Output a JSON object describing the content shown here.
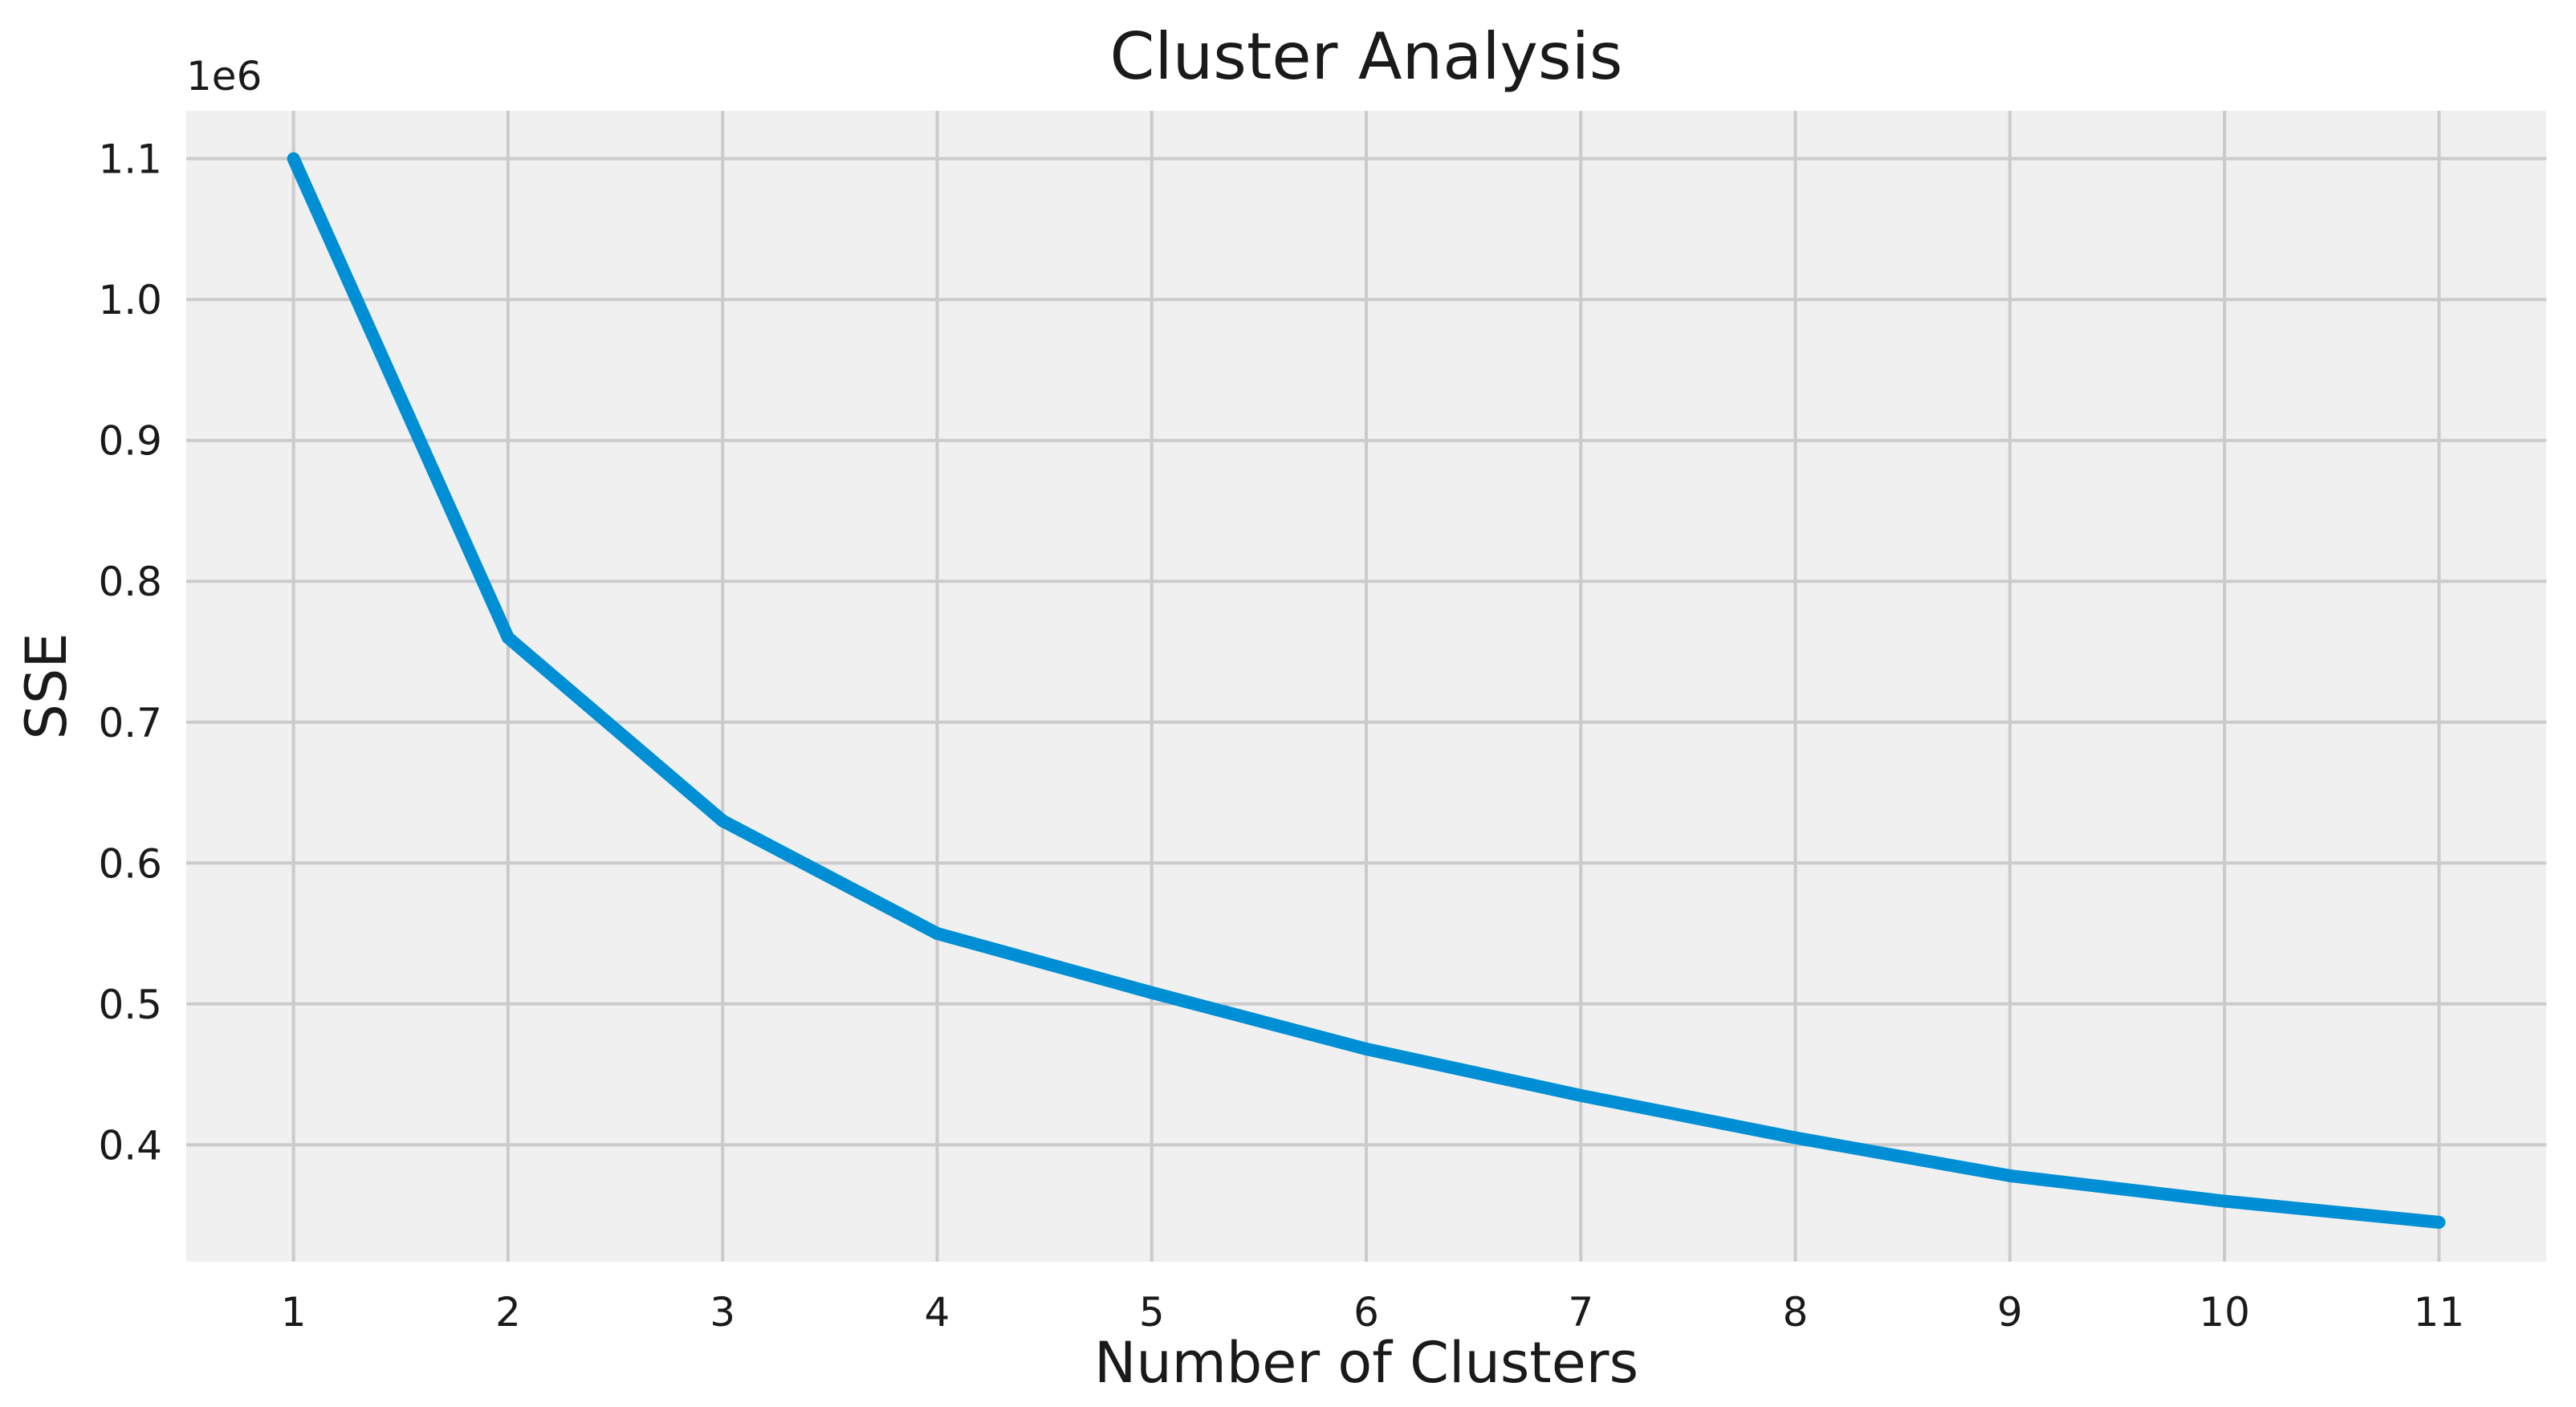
{
  "colors": {
    "plot_background": "#f0f0f0",
    "grid": "#cbcbcb",
    "series_line": "#008fd5",
    "text": "#1a1a1a"
  },
  "chart_data": {
    "type": "line",
    "title": "Cluster Analysis",
    "xlabel": "Number of Clusters",
    "ylabel": "SSE",
    "y_offset_label": "1e6",
    "y_scale_multiplier": 1000000,
    "x": [
      1,
      2,
      3,
      4,
      5,
      6,
      7,
      8,
      9,
      10,
      11
    ],
    "series": [
      {
        "values": [
          1100000,
          760000,
          630000,
          550000,
          508000,
          468000,
          435000,
          405000,
          378000,
          360000,
          345000
        ]
      }
    ],
    "xlim": [
      0.5,
      11.5
    ],
    "ylim": [
      0.317,
      1.134
    ],
    "x_ticks": [
      "1",
      "2",
      "3",
      "4",
      "5",
      "6",
      "7",
      "8",
      "9",
      "10",
      "11"
    ],
    "y_ticks": [
      "0.4",
      "0.5",
      "0.6",
      "0.7",
      "0.8",
      "0.9",
      "1.0",
      "1.1"
    ],
    "grid": true,
    "legend": "none"
  }
}
